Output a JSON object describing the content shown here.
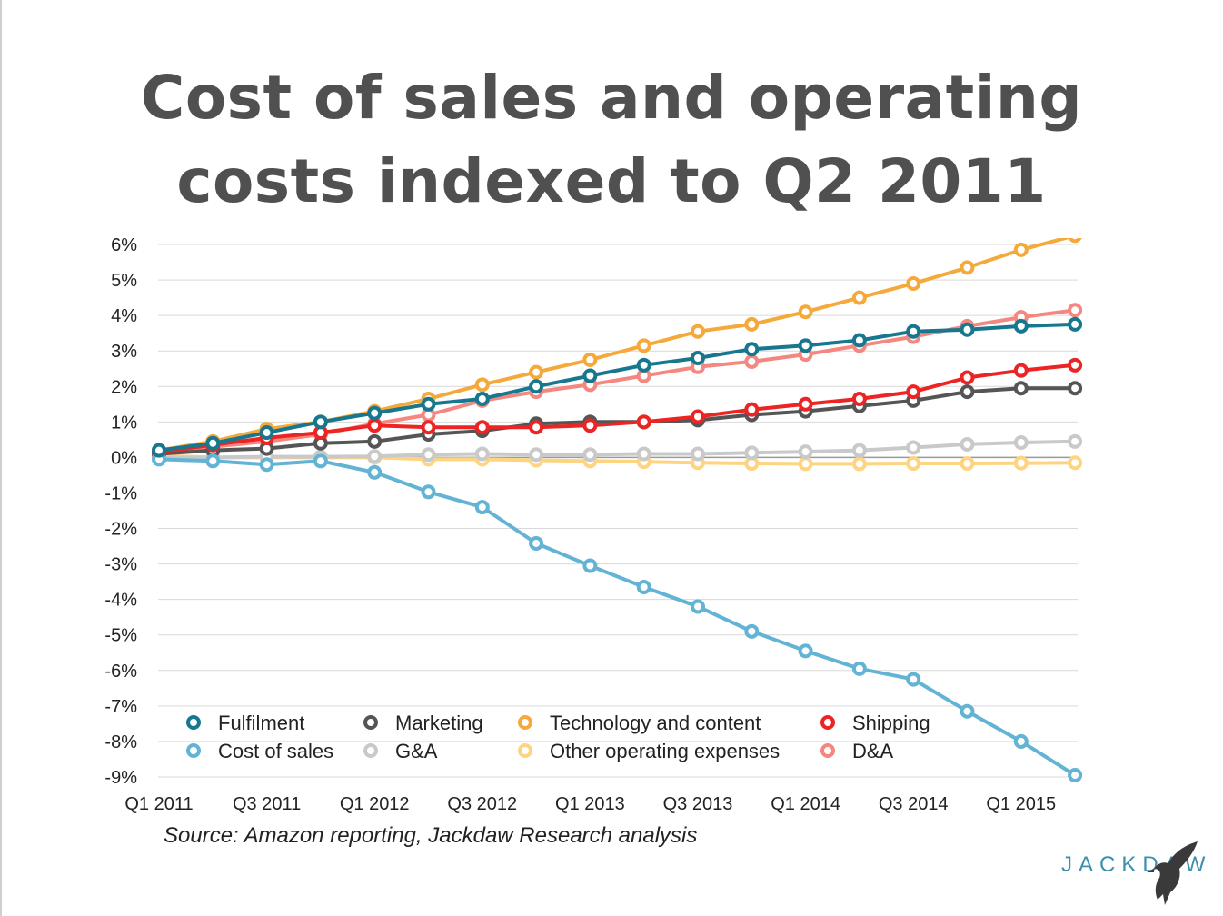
{
  "title": {
    "line1": "Cost of sales and operating",
    "line2": "costs indexed to Q2 2011"
  },
  "source": "Source: Amazon reporting, Jackdaw Research analysis",
  "brand": {
    "name": "JACKDAW",
    "logo_icon": "jackdaw-bird-icon",
    "color": "#3d8fb0"
  },
  "chart_data": {
    "type": "line",
    "title": "Cost of sales and operating costs indexed to Q2 2011",
    "xlabel": "",
    "ylabel": "",
    "ylim": [
      -9,
      6
    ],
    "yticks": [
      6,
      5,
      4,
      3,
      2,
      1,
      0,
      -1,
      -2,
      -3,
      -4,
      -5,
      -6,
      -7,
      -8,
      -9
    ],
    "ytick_labels": [
      "6%",
      "5%",
      "4%",
      "3%",
      "2%",
      "1%",
      "0%",
      "-1%",
      "-2%",
      "-3%",
      "-4%",
      "-5%",
      "-6%",
      "-7%",
      "-8%",
      "-9%"
    ],
    "categories": [
      "Q1 2011",
      "Q2 2011",
      "Q3 2011",
      "Q4 2011",
      "Q1 2012",
      "Q2 2012",
      "Q3 2012",
      "Q4 2012",
      "Q1 2013",
      "Q2 2013",
      "Q3 2013",
      "Q4 2013",
      "Q1 2014",
      "Q2 2014",
      "Q3 2014",
      "Q4 2014",
      "Q1 2015",
      "Q2 2015"
    ],
    "xtick_labels": [
      "Q1 2011",
      "Q3 2011",
      "Q1 2012",
      "Q3 2012",
      "Q1 2013",
      "Q3 2013",
      "Q1 2014",
      "Q3 2014",
      "Q1 2015"
    ],
    "xtick_indices": [
      0,
      2,
      4,
      6,
      8,
      10,
      12,
      14,
      16
    ],
    "grid": true,
    "legend_placement": "bottom-left inside plot",
    "series": [
      {
        "name": "Technology and content",
        "color": "#f5a93a",
        "values": [
          0.2,
          0.45,
          0.8,
          1.0,
          1.3,
          1.65,
          2.05,
          2.4,
          2.75,
          3.15,
          3.55,
          3.75,
          4.1,
          4.5,
          4.9,
          5.35,
          5.85,
          6.25
        ]
      },
      {
        "name": "Other operating expenses",
        "color": "#ffd480",
        "values": [
          0.05,
          0.0,
          0.0,
          0.0,
          0.0,
          -0.05,
          -0.05,
          -0.08,
          -0.1,
          -0.12,
          -0.15,
          -0.17,
          -0.18,
          -0.18,
          -0.17,
          -0.17,
          -0.16,
          -0.15
        ]
      },
      {
        "name": "G&A",
        "color": "#c9c9c9",
        "values": [
          0.0,
          0.0,
          0.02,
          0.02,
          0.03,
          0.08,
          0.1,
          0.08,
          0.08,
          0.1,
          0.1,
          0.13,
          0.16,
          0.2,
          0.28,
          0.37,
          0.42,
          0.45
        ]
      },
      {
        "name": "D&A",
        "color": "#f4877f",
        "values": [
          0.1,
          0.3,
          0.45,
          0.65,
          0.95,
          1.2,
          1.6,
          1.85,
          2.05,
          2.3,
          2.55,
          2.7,
          2.9,
          3.15,
          3.4,
          3.7,
          3.95,
          4.15
        ]
      },
      {
        "name": "Marketing",
        "color": "#555555",
        "values": [
          0.1,
          0.2,
          0.25,
          0.4,
          0.45,
          0.65,
          0.75,
          0.95,
          1.0,
          1.0,
          1.05,
          1.2,
          1.3,
          1.45,
          1.6,
          1.85,
          1.95,
          1.95
        ]
      },
      {
        "name": "Shipping",
        "color": "#ec2424",
        "values": [
          0.15,
          0.35,
          0.55,
          0.7,
          0.9,
          0.85,
          0.85,
          0.85,
          0.9,
          1.0,
          1.15,
          1.35,
          1.5,
          1.65,
          1.85,
          2.25,
          2.45,
          2.6
        ]
      },
      {
        "name": "Cost of sales",
        "color": "#63b3d4",
        "values": [
          -0.05,
          -0.1,
          -0.2,
          -0.1,
          -0.42,
          -0.97,
          -1.4,
          -2.42,
          -3.05,
          -3.65,
          -4.2,
          -4.9,
          -5.45,
          -5.95,
          -6.25,
          -7.15,
          -8.0,
          -8.95
        ]
      },
      {
        "name": "Fulfilment",
        "color": "#17778f",
        "values": [
          0.2,
          0.4,
          0.7,
          1.0,
          1.25,
          1.5,
          1.65,
          2.0,
          2.3,
          2.6,
          2.8,
          3.05,
          3.15,
          3.3,
          3.55,
          3.6,
          3.7,
          3.75
        ]
      }
    ],
    "legend": [
      {
        "name": "Fulfilment",
        "color": "#17778f"
      },
      {
        "name": "Marketing",
        "color": "#555555"
      },
      {
        "name": "Technology and content",
        "color": "#f5a93a"
      },
      {
        "name": "Shipping",
        "color": "#ec2424"
      },
      {
        "name": "Cost of sales",
        "color": "#63b3d4"
      },
      {
        "name": "G&A",
        "color": "#c9c9c9"
      },
      {
        "name": "Other operating expenses",
        "color": "#ffd480"
      },
      {
        "name": "D&A",
        "color": "#f4877f"
      }
    ]
  }
}
